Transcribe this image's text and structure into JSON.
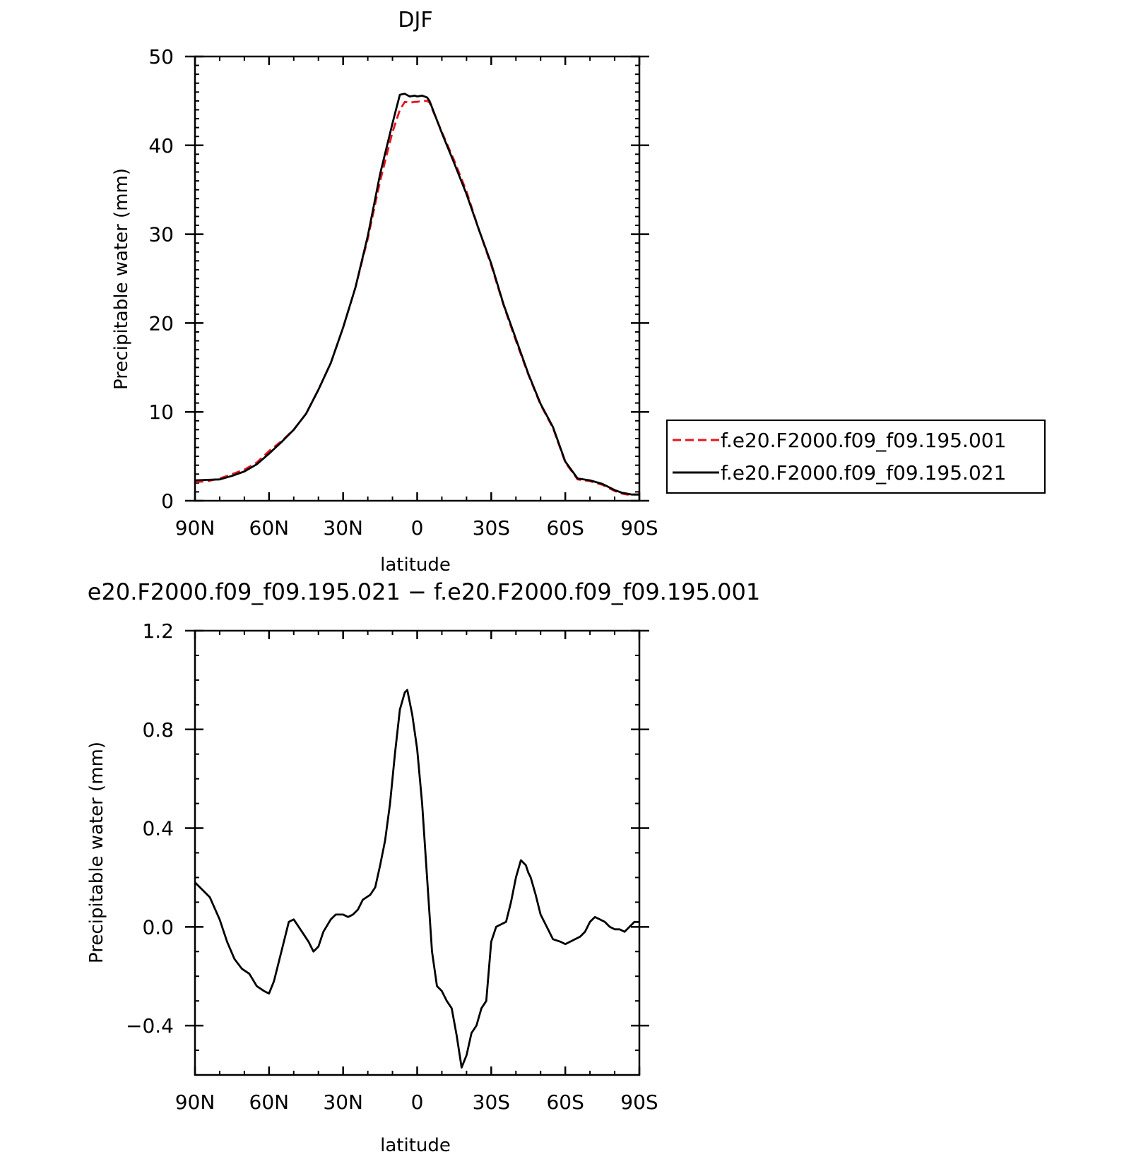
{
  "colors": {
    "background": "#ffffff",
    "axis": "#000000",
    "series_001": "#e8141c",
    "series_021": "#000000"
  },
  "top_plot": {
    "title": "DJF",
    "legend_position": "right-lower",
    "legend": {
      "entries": [
        "f.e20.F2000.f09_f09.195.001",
        "f.e20.F2000.f09_f09.195.021"
      ]
    }
  },
  "bottom_plot": {
    "title": "e20.F2000.f09_f09.195.021 − f.e20.F2000.f09_f09.195.001"
  },
  "chart_data": [
    {
      "type": "line",
      "title": "DJF",
      "xlabel": "latitude",
      "ylabel": "Precipitable water (mm)",
      "x_direction": "north-to-south (90N on left, 90S on right)",
      "xlim": [
        90,
        -90
      ],
      "ylim": [
        0,
        50
      ],
      "xticks": [
        90,
        60,
        30,
        0,
        -30,
        -60,
        -90
      ],
      "xtick_labels": [
        "90N",
        "60N",
        "30N",
        "0",
        "30S",
        "60S",
        "90S"
      ],
      "yticks": [
        0,
        10,
        20,
        30,
        40,
        50
      ],
      "ytick_labels": [
        "0",
        "10",
        "20",
        "30",
        "40",
        "50"
      ],
      "grid": false,
      "legend_position": "right",
      "series": [
        {
          "name": "f.e20.F2000.f09_f09.195.001",
          "color": "#e8141c",
          "dash": "dashed",
          "x": [
            90,
            85,
            80,
            75,
            70,
            65,
            60,
            55,
            50,
            45,
            40,
            35,
            30,
            25,
            20,
            15,
            10,
            7,
            5,
            3,
            1,
            0,
            -2,
            -4,
            -5,
            -10,
            -15,
            -20,
            -25,
            -30,
            -35,
            -40,
            -45,
            -50,
            -55,
            -60,
            -65,
            -70,
            -75,
            -80,
            -83,
            -85,
            -87,
            -90
          ],
          "y": [
            2.1,
            2.2,
            2.5,
            3.0,
            3.5,
            4.3,
            5.6,
            6.7,
            8.0,
            9.8,
            12.5,
            15.5,
            19.5,
            24.0,
            29.5,
            36.0,
            41.5,
            44.0,
            44.9,
            44.8,
            44.9,
            44.9,
            45.0,
            45.0,
            44.8,
            41.5,
            38.3,
            34.8,
            30.5,
            26.5,
            22.0,
            18.0,
            14.2,
            10.8,
            8.2,
            4.3,
            2.4,
            2.2,
            1.8,
            1.1,
            0.8,
            0.7,
            0.7,
            0.7
          ]
        },
        {
          "name": "f.e20.F2000.f09_f09.195.021",
          "color": "#000000",
          "dash": "solid",
          "x": [
            90,
            85,
            80,
            75,
            70,
            65,
            60,
            55,
            50,
            45,
            40,
            35,
            30,
            25,
            20,
            15,
            10,
            7,
            5,
            3,
            1,
            0,
            -2,
            -4,
            -5,
            -10,
            -15,
            -20,
            -25,
            -30,
            -35,
            -40,
            -45,
            -50,
            -55,
            -60,
            -65,
            -70,
            -75,
            -80,
            -83,
            -85,
            -87,
            -90
          ],
          "y": [
            2.3,
            2.35,
            2.4,
            2.8,
            3.3,
            4.1,
            5.3,
            6.6,
            8.0,
            9.8,
            12.5,
            15.5,
            19.5,
            24.0,
            29.8,
            36.8,
            42.5,
            45.7,
            45.8,
            45.5,
            45.6,
            45.5,
            45.6,
            45.4,
            45.0,
            41.4,
            38.0,
            34.5,
            30.5,
            26.7,
            22.1,
            18.2,
            14.3,
            10.9,
            8.3,
            4.4,
            2.5,
            2.3,
            1.9,
            1.2,
            0.9,
            0.8,
            0.7,
            0.7
          ]
        }
      ]
    },
    {
      "type": "line",
      "title": "e20.F2000.f09_f09.195.021 − f.e20.F2000.f09_f09.195.001",
      "xlabel": "latitude",
      "ylabel": "Precipitable water (mm)",
      "x_direction": "north-to-south (90N on left, 90S on right)",
      "xlim": [
        90,
        -90
      ],
      "ylim": [
        -0.6,
        1.2
      ],
      "xticks": [
        90,
        60,
        30,
        0,
        -30,
        -60,
        -90
      ],
      "xtick_labels": [
        "90N",
        "60N",
        "30N",
        "0",
        "30S",
        "60S",
        "90S"
      ],
      "yticks": [
        -0.4,
        0,
        0.4,
        0.8,
        1.2
      ],
      "ytick_labels": [
        "−0.4",
        "0.0",
        "0.4",
        "0.8",
        "1.2"
      ],
      "grid": false,
      "series": [
        {
          "color": "#000000",
          "dash": "solid",
          "x": [
            90,
            87,
            84,
            80,
            77,
            74,
            71,
            68,
            65,
            62,
            60,
            58,
            55,
            52,
            50,
            48,
            46,
            44,
            42,
            40,
            38,
            35,
            33,
            30,
            28,
            26,
            24,
            22,
            19,
            17,
            15,
            13,
            11,
            9,
            7,
            5,
            4,
            2,
            0,
            -2,
            -4,
            -6,
            -8,
            -10,
            -12,
            -14,
            -16,
            -18,
            -20,
            -22,
            -24,
            -26,
            -28,
            -30,
            -32,
            -34,
            -36,
            -38,
            -40,
            -42,
            -44,
            -45,
            -46,
            -48,
            -50,
            -52,
            -55,
            -58,
            -60,
            -62,
            -64,
            -66,
            -68,
            -70,
            -72,
            -74,
            -76,
            -78,
            -80,
            -82,
            -84,
            -86,
            -88,
            -90
          ],
          "y": [
            0.18,
            0.15,
            0.12,
            0.03,
            -0.06,
            -0.13,
            -0.17,
            -0.19,
            -0.24,
            -0.26,
            -0.27,
            -0.22,
            -0.1,
            0.02,
            0.03,
            0.0,
            -0.03,
            -0.06,
            -0.1,
            -0.08,
            -0.02,
            0.03,
            0.05,
            0.05,
            0.04,
            0.05,
            0.07,
            0.11,
            0.13,
            0.16,
            0.25,
            0.35,
            0.5,
            0.7,
            0.88,
            0.95,
            0.96,
            0.86,
            0.72,
            0.5,
            0.2,
            -0.1,
            -0.24,
            -0.26,
            -0.3,
            -0.33,
            -0.44,
            -0.57,
            -0.52,
            -0.43,
            -0.4,
            -0.33,
            -0.3,
            -0.06,
            0.0,
            0.01,
            0.02,
            0.1,
            0.2,
            0.27,
            0.25,
            0.22,
            0.2,
            0.13,
            0.05,
            0.01,
            -0.05,
            -0.06,
            -0.07,
            -0.06,
            -0.05,
            -0.04,
            -0.02,
            0.02,
            0.04,
            0.03,
            0.02,
            0.0,
            -0.01,
            -0.01,
            -0.02,
            0.0,
            0.02,
            0.02
          ]
        }
      ]
    }
  ]
}
